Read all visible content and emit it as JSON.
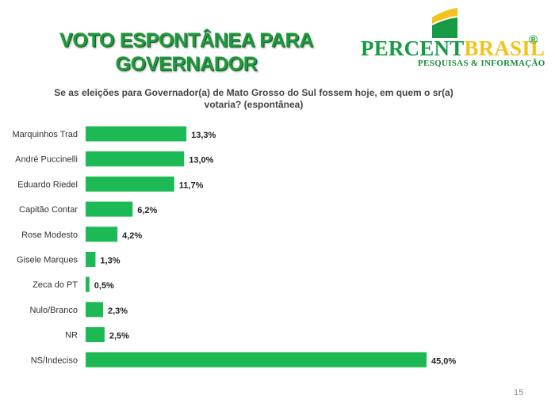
{
  "title": {
    "line1": "VOTO ESPONTÂNEA PARA",
    "line2": "GOVERNADOR"
  },
  "logo": {
    "name_part1": "PERCENT",
    "name_part2": "BRASIL",
    "registered": "®",
    "tagline": "PESQUISAS & INFORMAÇÃO"
  },
  "question": "Se as eleições para Governador(a) de Mato Grosso do Sul fossem hoje, em quem o sr(a) votaria? (espontânea)",
  "page_number": "15",
  "colors": {
    "bar": "#1db954",
    "title": "#1f9a3c",
    "brand_green": "#169b44",
    "brand_yellow": "#f2c31a"
  },
  "chart_data": {
    "type": "bar",
    "orientation": "horizontal",
    "categories": [
      "Marquinhos Trad",
      "André Puccinelli",
      "Eduardo Riedel",
      "Capitão Contar",
      "Rose Modesto",
      "Gisele Marques",
      "Zeca do PT",
      "Nulo/Branco",
      "NR",
      "NS/Indeciso"
    ],
    "values": [
      13.3,
      13.0,
      11.7,
      6.2,
      4.2,
      1.3,
      0.5,
      2.3,
      2.5,
      45.0
    ],
    "data_labels": [
      "13,3%",
      "13,0%",
      "11,7%",
      "6,2%",
      "4,2%",
      "1,3%",
      "0,5%",
      "2,3%",
      "2,5%",
      "45,0%"
    ],
    "xlim": [
      0,
      45.0
    ],
    "grid": false,
    "legend": "none"
  }
}
